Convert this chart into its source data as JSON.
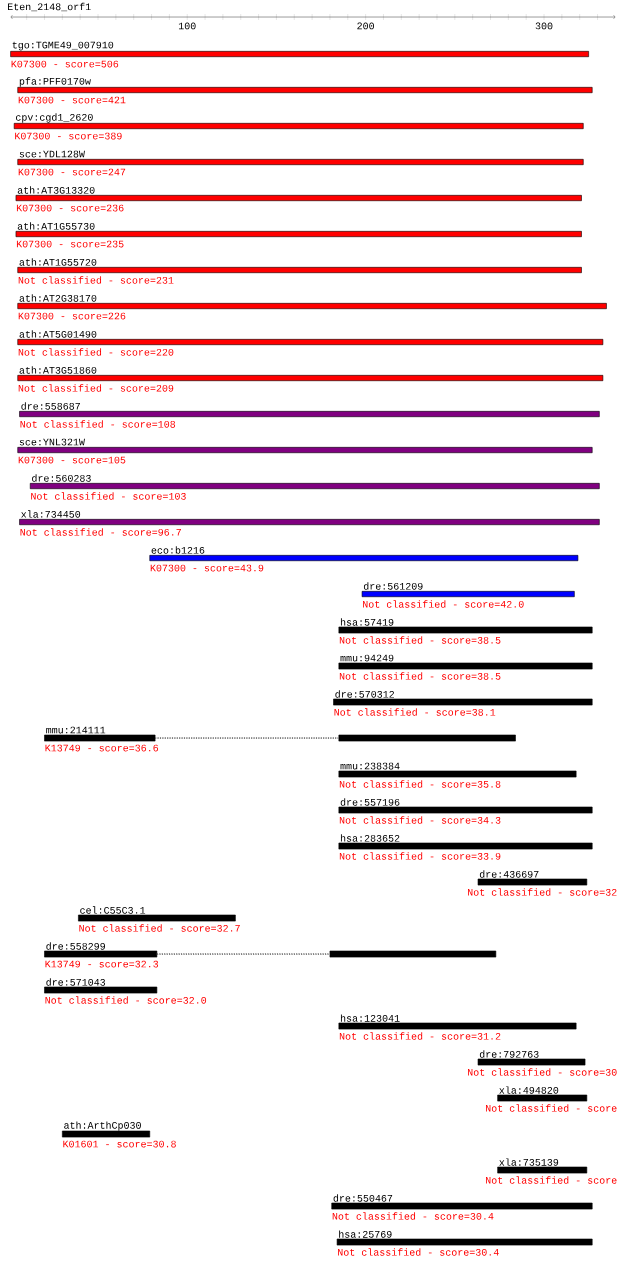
{
  "chart_data": {
    "type": "bar",
    "orientation": "horizontal",
    "title": "Eten_2148_orf1",
    "categories": [
      "tgo:TGME49_007910",
      "pfa:PFF0170w",
      "cpv:cgd1_2620",
      "sce:YDL128W",
      "ath:AT3G13320",
      "ath:AT1G55730",
      "ath:AT1G55720",
      "ath:AT2G38170",
      "ath:AT5G01490",
      "ath:AT3G51860",
      "dre:558687",
      "sce:YNL321W",
      "dre:560283",
      "xla:734450",
      "eco:b1216",
      "dre:561209",
      "hsa:57419",
      "mmu:94249",
      "dre:570312",
      "mmu:214111",
      "mmu:238384",
      "dre:557196",
      "hsa:283652",
      "dre:436697",
      "cel:C55C3.1",
      "dre:558299",
      "dre:571043",
      "hsa:123041",
      "dre:792763",
      "xla:494820",
      "ath:ArthCp030",
      "xla:735139",
      "dre:550467",
      "hsa:25769"
    ],
    "xlim": [
      1,
      340
    ],
    "xticks": [
      {
        "value": 10,
        "label": null
      },
      {
        "value": 20,
        "label": null
      },
      {
        "value": 30,
        "label": null
      },
      {
        "value": 40,
        "label": null
      },
      {
        "value": 50,
        "label": null
      },
      {
        "value": 60,
        "label": null
      },
      {
        "value": 70,
        "label": null
      },
      {
        "value": 80,
        "label": null
      },
      {
        "value": 90,
        "label": null
      },
      100,
      {
        "value": 110,
        "label": null
      },
      {
        "value": 120,
        "label": null
      },
      {
        "value": 130,
        "label": null
      },
      {
        "value": 140,
        "label": null
      },
      {
        "value": 150,
        "label": null
      },
      {
        "value": 160,
        "label": null
      },
      {
        "value": 170,
        "label": null
      },
      {
        "value": 180,
        "label": null
      },
      {
        "value": 190,
        "label": null
      },
      200,
      {
        "value": 210,
        "label": null
      },
      {
        "value": 220,
        "label": null
      },
      {
        "value": 230,
        "label": null
      },
      {
        "value": 240,
        "label": null
      },
      {
        "value": 250,
        "label": null
      },
      {
        "value": 260,
        "label": null
      },
      {
        "value": 270,
        "label": null
      },
      {
        "value": 280,
        "label": null
      },
      {
        "value": 290,
        "label": null
      },
      300,
      {
        "value": 310,
        "label": null
      },
      {
        "value": 320,
        "label": null
      },
      {
        "value": 330,
        "label": null
      }
    ],
    "series": [
      {
        "colors": [
          "#ff0000",
          "#ff0000",
          "#ff0000",
          "#ff0000",
          "#ff0000",
          "#ff0000",
          "#ff0000",
          "#ff0000",
          "#ff0000",
          "#ff0000",
          "#800080",
          "#800080",
          "#800080",
          "#800080",
          "#0000ff",
          "#0000ff",
          "#000000",
          "#000000",
          "#000000",
          "#000000",
          "#000000",
          "#000000",
          "#000000",
          "#000000",
          "#000000",
          "#000000",
          "#000000",
          "#000000",
          "#000000",
          "#000000",
          "#000000",
          "#000000",
          "#000000",
          "#000000"
        ],
        "base": [
          1,
          5,
          3,
          5,
          4,
          4,
          5,
          5,
          5,
          5,
          6,
          5,
          12,
          6,
          79,
          198,
          185,
          185,
          182,
          20,
          185,
          185,
          185,
          263,
          39,
          20,
          20,
          185,
          263,
          274,
          30,
          274,
          181,
          184
        ],
        "values": [
          324,
          322,
          319,
          317,
          317,
          317,
          316,
          330,
          328,
          328,
          325,
          322,
          319,
          325,
          240,
          119,
          142,
          142,
          145,
          62,
          133,
          142,
          142,
          61,
          88,
          63,
          63,
          133,
          60,
          50,
          49,
          50,
          146,
          143
        ]
      },
      {
        "color": "#000000",
        "base": [
          null,
          null,
          null,
          null,
          null,
          null,
          null,
          null,
          null,
          null,
          null,
          null,
          null,
          null,
          null,
          null,
          null,
          null,
          null,
          185,
          null,
          null,
          null,
          null,
          null,
          180,
          null,
          null,
          null,
          null,
          null,
          null,
          null,
          null
        ],
        "values": [
          null,
          null,
          null,
          null,
          null,
          null,
          null,
          null,
          null,
          null,
          null,
          null,
          null,
          null,
          null,
          null,
          null,
          null,
          null,
          99,
          null,
          null,
          null,
          null,
          null,
          93,
          null,
          null,
          null,
          null,
          null,
          null,
          null,
          null
        ]
      },
      {
        "color": "#000000",
        "line_style": "dotted",
        "base": [
          null,
          null,
          null,
          null,
          null,
          null,
          null,
          null,
          null,
          null,
          null,
          null,
          null,
          null,
          null,
          null,
          null,
          null,
          null,
          82,
          null,
          null,
          null,
          null,
          null,
          83,
          null,
          null,
          null,
          null,
          null,
          null,
          null,
          null
        ],
        "values": [
          null,
          null,
          null,
          null,
          null,
          null,
          null,
          null,
          null,
          null,
          null,
          null,
          null,
          null,
          null,
          null,
          null,
          null,
          null,
          103,
          null,
          null,
          null,
          null,
          null,
          97,
          null,
          null,
          null,
          null,
          null,
          null,
          null,
          null
        ]
      }
    ],
    "annotations": [
      "K07300 - score=506",
      "K07300 - score=421",
      "K07300 - score=389",
      "K07300 - score=247",
      "K07300 - score=236",
      "K07300 - score=235",
      "Not classified - score=231",
      "K07300 - score=226",
      "Not classified - score=220",
      "Not classified - score=209",
      "Not classified - score=108",
      "K07300 - score=105",
      "Not classified - score=103",
      "Not classified - score=96.7",
      "K07300 - score=43.9",
      "Not classified - score=42.0",
      "Not classified - score=38.5",
      "Not classified - score=38.5",
      "Not classified - score=38.1",
      "K13749 - score=36.6",
      "Not classified - score=35.8",
      "Not classified - score=34.3",
      "Not classified - score=33.9",
      "Not classified - score=32",
      "Not classified - score=32.7",
      "K13749 - score=32.3",
      "Not classified - score=32.0",
      "Not classified - score=31.2",
      "Not classified - score=30",
      "Not classified - score",
      "K01601 - score=30.8",
      "Not classified - score",
      "Not classified - score=30.4",
      "Not classified - score=30.4"
    ]
  }
}
